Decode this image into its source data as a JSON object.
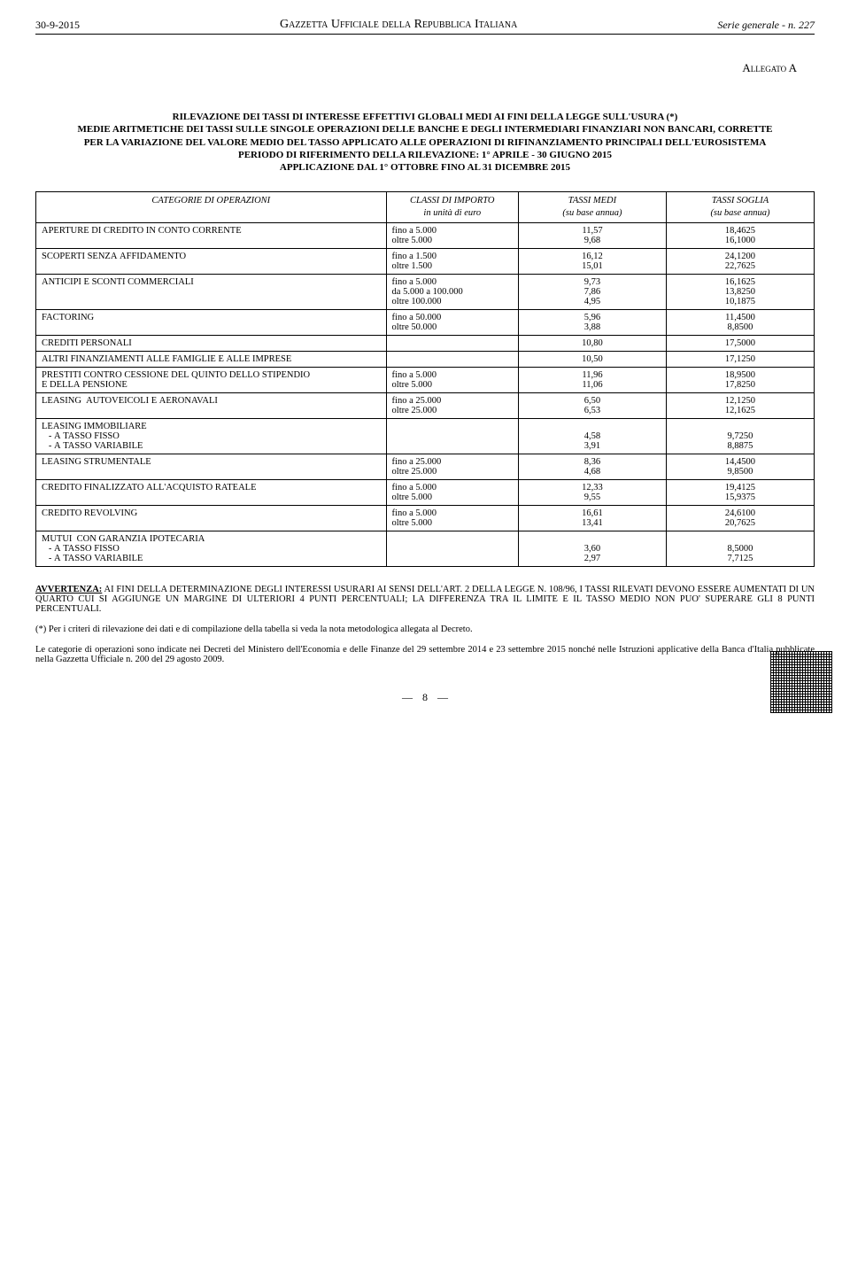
{
  "header": {
    "date": "30-9-2015",
    "center": "Gazzetta Ufficiale della Repubblica Italiana",
    "right": "Serie generale - n. 227"
  },
  "allegato": "Allegato A",
  "title_lines": [
    "RILEVAZIONE DEI TASSI DI INTERESSE EFFETTIVI GLOBALI MEDI AI FINI DELLA LEGGE SULL'USURA (*)",
    "MEDIE ARITMETICHE DEI TASSI SULLE SINGOLE OPERAZIONI DELLE BANCHE E DEGLI INTERMEDIARI FINANZIARI NON BANCARI, CORRETTE",
    "PER LA VARIAZIONE DEL VALORE MEDIO DEL TASSO APPLICATO ALLE OPERAZIONI DI RIFINANZIAMENTO PRINCIPALI DELL'EUROSISTEMA",
    "PERIODO DI RIFERIMENTO DELLA RILEVAZIONE: 1° APRILE  - 30 GIUGNO 2015",
    "APPLICAZIONE DAL 1° OTTOBRE FINO AL 31 DICEMBRE 2015"
  ],
  "table": {
    "headers": {
      "cat": "CATEGORIE DI OPERAZIONI",
      "class_l1": "CLASSI DI IMPORTO",
      "class_l2": "in unità di euro",
      "medi_l1": "TASSI MEDI",
      "medi_l2": "(su base annua)",
      "soglia_l1": "TASSI SOGLIA",
      "soglia_l2": "(su base annua)"
    },
    "rows": [
      {
        "cat": "APERTURE DI CREDITO IN CONTO CORRENTE",
        "lines": [
          {
            "cls": "fino a 5.000",
            "medi": "11,57",
            "soglia": "18,4625"
          },
          {
            "cls": "oltre 5.000",
            "medi": "9,68",
            "soglia": "16,1000"
          }
        ]
      },
      {
        "cat": "SCOPERTI SENZA AFFIDAMENTO",
        "lines": [
          {
            "cls": "fino a 1.500",
            "medi": "16,12",
            "soglia": "24,1200"
          },
          {
            "cls": "oltre 1.500",
            "medi": "15,01",
            "soglia": "22,7625"
          }
        ]
      },
      {
        "cat": "ANTICIPI E SCONTI COMMERCIALI",
        "lines": [
          {
            "cls": "fino a 5.000",
            "medi": "9,73",
            "soglia": "16,1625"
          },
          {
            "cls": "da 5.000 a 100.000",
            "medi": "7,86",
            "soglia": "13,8250"
          },
          {
            "cls": "oltre 100.000",
            "medi": "4,95",
            "soglia": "10,1875"
          }
        ]
      },
      {
        "cat": "FACTORING",
        "lines": [
          {
            "cls": "fino a 50.000",
            "medi": "5,96",
            "soglia": "11,4500"
          },
          {
            "cls": "oltre 50.000",
            "medi": "3,88",
            "soglia": "8,8500"
          }
        ]
      },
      {
        "cat": "CREDITI PERSONALI",
        "lines": [
          {
            "cls": "",
            "medi": "10,80",
            "soglia": "17,5000"
          }
        ]
      },
      {
        "cat": "ALTRI FINANZIAMENTI ALLE FAMIGLIE E ALLE IMPRESE",
        "lines": [
          {
            "cls": "",
            "medi": "10,50",
            "soglia": "17,1250"
          }
        ]
      },
      {
        "cat": "PRESTITI CONTRO CESSIONE DEL QUINTO DELLO STIPENDIO\nE DELLA PENSIONE",
        "lines": [
          {
            "cls": "fino a 5.000",
            "medi": "11,96",
            "soglia": "18,9500"
          },
          {
            "cls": "oltre 5.000",
            "medi": "11,06",
            "soglia": "17,8250"
          }
        ]
      },
      {
        "cat": "LEASING  AUTOVEICOLI E AERONAVALI",
        "lines": [
          {
            "cls": "fino a 25.000",
            "medi": "6,50",
            "soglia": "12,1250"
          },
          {
            "cls": "oltre 25.000",
            "medi": "6,53",
            "soglia": "12,1625"
          }
        ]
      },
      {
        "cat": "LEASING IMMOBILIARE\n   - A TASSO FISSO\n   - A TASSO VARIABILE",
        "lines": [
          {
            "cls": "",
            "medi": "\n4,58\n3,91",
            "soglia": "\n9,7250\n8,8875"
          }
        ]
      },
      {
        "cat": "LEASING STRUMENTALE",
        "lines": [
          {
            "cls": "fino a 25.000",
            "medi": "8,36",
            "soglia": "14,4500"
          },
          {
            "cls": "oltre 25.000",
            "medi": "4,68",
            "soglia": "9,8500"
          }
        ]
      },
      {
        "cat": "CREDITO FINALIZZATO ALL'ACQUISTO RATEALE",
        "lines": [
          {
            "cls": "fino a 5.000",
            "medi": "12,33",
            "soglia": "19,4125"
          },
          {
            "cls": "oltre 5.000",
            "medi": "9,55",
            "soglia": "15,9375"
          }
        ]
      },
      {
        "cat": "CREDITO REVOLVING",
        "lines": [
          {
            "cls": "fino a 5.000",
            "medi": "16,61",
            "soglia": "24,6100"
          },
          {
            "cls": "oltre 5.000",
            "medi": "13,41",
            "soglia": "20,7625"
          }
        ]
      },
      {
        "cat": "MUTUI  CON GARANZIA IPOTECARIA\n   - A TASSO FISSO\n   - A TASSO VARIABILE",
        "lines": [
          {
            "cls": "",
            "medi": "\n3,60\n2,97",
            "soglia": "\n8,5000\n7,7125"
          }
        ]
      }
    ]
  },
  "avvertenza": {
    "label": "AVVERTENZA:",
    "text": "  AI FINI DELLA DETERMINAZIONE DEGLI INTERESSI USURARI AI SENSI DELL'ART. 2  DELLA LEGGE N. 108/96, I TASSI RILEVATI DEVONO ESSERE AUMENTATI  DI UN QUARTO CUI SI AGGIUNGE UN MARGINE DI ULTERIORI 4 PUNTI PERCENTUALI; LA DIFFERENZA TRA IL LIMITE E IL TASSO MEDIO NON PUO' SUPERARE GLI 8 PUNTI PERCENTUALI."
  },
  "note1": "(*) Per i criteri di rilevazione dei dati e di compilazione della tabella si veda la nota metodologica allegata al Decreto.",
  "note2": "Le categorie di operazioni sono indicate nei Decreti del Ministero dell'Economia e delle Finanze del 29 settembre 2014 e 23 settembre 2015 nonché nelle Istruzioni applicative della Banca d'Italia pubblicate nella Gazzetta Ufficiale n. 200 del 29 agosto 2009.",
  "pagenum": "8"
}
